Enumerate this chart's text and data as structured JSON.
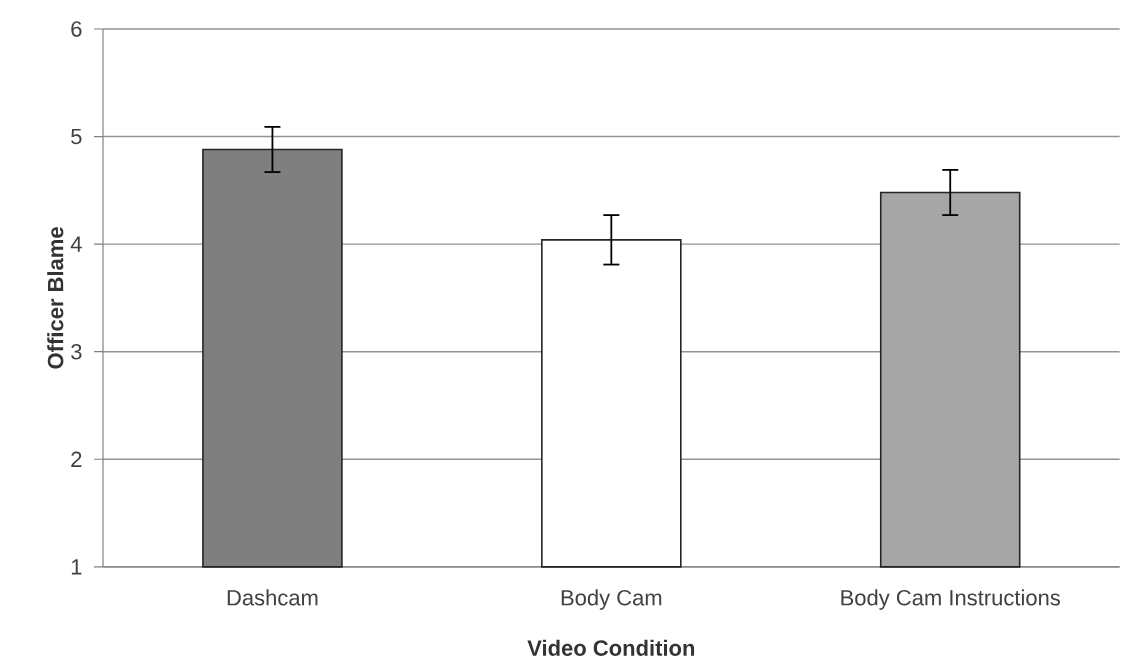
{
  "chart_data": {
    "type": "bar",
    "xlabel": "Video Condition",
    "ylabel": "Officer Blame",
    "categories": [
      "Dashcam",
      "Body Cam",
      "Body Cam Instructions"
    ],
    "values": [
      4.88,
      4.04,
      4.48
    ],
    "errors": [
      0.21,
      0.23,
      0.21
    ],
    "colors": [
      "#7f7f7f",
      "#ffffff",
      "#a6a6a6"
    ],
    "ylim": [
      1,
      6
    ],
    "yticks": [
      1,
      2,
      3,
      4,
      5,
      6
    ],
    "grid": "y"
  }
}
